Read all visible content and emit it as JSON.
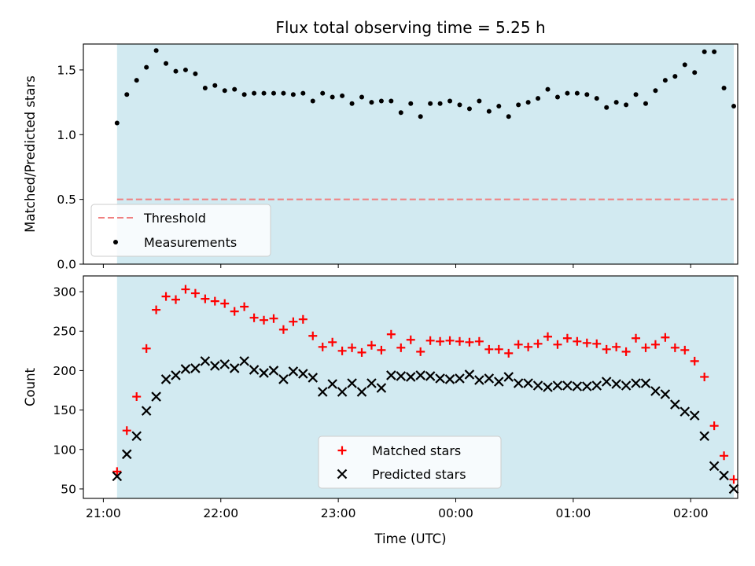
{
  "figure": {
    "title": "Flux total observing time = 5.25 h"
  },
  "colors": {
    "band": "#add8e6",
    "threshold": "#f08080",
    "matched": "#ff0000",
    "predicted": "#000000",
    "measurements": "#000000"
  },
  "chart_data": [
    {
      "type": "scatter",
      "name": "ratio-panel",
      "ylabel": "Matched/Predicted stars",
      "xlim": [
        -0.17,
        5.4
      ],
      "ylim": [
        0,
        1.7
      ],
      "yticks": [
        0.0,
        0.5,
        1.0,
        1.5
      ],
      "ytick_labels": [
        "0.0",
        "0.5",
        "1.0",
        "1.5"
      ],
      "xticks": [
        0,
        1,
        2,
        3,
        4,
        5
      ],
      "xtick_labels_visible": false,
      "shaded_span": [
        0.1167,
        5.3667
      ],
      "threshold": {
        "name": "Threshold",
        "value": 0.5,
        "style": "dashed"
      },
      "legend": {
        "position": "lower-left",
        "entries": [
          "Threshold",
          "Measurements"
        ]
      },
      "series": [
        {
          "name": "Measurements",
          "marker": "dot",
          "x": [
            0.1167,
            0.2,
            0.2833,
            0.3667,
            0.45,
            0.5333,
            0.6167,
            0.7,
            0.7833,
            0.8667,
            0.95,
            1.0333,
            1.1167,
            1.2,
            1.2833,
            1.3667,
            1.45,
            1.5333,
            1.6167,
            1.7,
            1.7833,
            1.8667,
            1.95,
            2.0333,
            2.1167,
            2.2,
            2.2833,
            2.3667,
            2.45,
            2.5333,
            2.6167,
            2.7,
            2.7833,
            2.8667,
            2.95,
            3.0333,
            3.1167,
            3.2,
            3.2833,
            3.3667,
            3.45,
            3.5333,
            3.6167,
            3.7,
            3.7833,
            3.8667,
            3.95,
            4.0333,
            4.1167,
            4.2,
            4.2833,
            4.3667,
            4.45,
            4.5333,
            4.6167,
            4.7,
            4.7833,
            4.8667,
            4.95,
            5.0333,
            5.1167,
            5.2,
            5.2833,
            5.3667
          ],
          "y": [
            1.09,
            1.31,
            1.42,
            1.52,
            1.65,
            1.55,
            1.49,
            1.5,
            1.47,
            1.36,
            1.38,
            1.34,
            1.35,
            1.31,
            1.32,
            1.32,
            1.32,
            1.32,
            1.31,
            1.32,
            1.26,
            1.32,
            1.29,
            1.3,
            1.24,
            1.29,
            1.25,
            1.26,
            1.26,
            1.17,
            1.24,
            1.14,
            1.24,
            1.24,
            1.26,
            1.23,
            1.2,
            1.26,
            1.18,
            1.22,
            1.14,
            1.23,
            1.25,
            1.28,
            1.35,
            1.29,
            1.32,
            1.32,
            1.31,
            1.28,
            1.21,
            1.25,
            1.23,
            1.31,
            1.24,
            1.34,
            1.42,
            1.45,
            1.54,
            1.48,
            1.64,
            1.64,
            1.36,
            1.22
          ]
        }
      ]
    },
    {
      "type": "scatter",
      "name": "count-panel",
      "xlabel": "Time (UTC)",
      "ylabel": "Count",
      "xlim": [
        -0.17,
        5.4
      ],
      "ylim": [
        38,
        320
      ],
      "yticks": [
        50,
        100,
        150,
        200,
        250,
        300
      ],
      "ytick_labels": [
        "50",
        "100",
        "150",
        "200",
        "250",
        "300"
      ],
      "xticks": [
        0,
        1,
        2,
        3,
        4,
        5
      ],
      "xtick_labels": [
        "21:00",
        "22:00",
        "23:00",
        "00:00",
        "01:00",
        "02:00"
      ],
      "shaded_span": [
        0.1167,
        5.3667
      ],
      "legend": {
        "position": "lower-center",
        "entries": [
          "Matched stars",
          "Predicted stars"
        ]
      },
      "series": [
        {
          "name": "Matched stars",
          "marker": "plus",
          "x": [
            0.1167,
            0.2,
            0.2833,
            0.3667,
            0.45,
            0.5333,
            0.6167,
            0.7,
            0.7833,
            0.8667,
            0.95,
            1.0333,
            1.1167,
            1.2,
            1.2833,
            1.3667,
            1.45,
            1.5333,
            1.6167,
            1.7,
            1.7833,
            1.8667,
            1.95,
            2.0333,
            2.1167,
            2.2,
            2.2833,
            2.3667,
            2.45,
            2.5333,
            2.6167,
            2.7,
            2.7833,
            2.8667,
            2.95,
            3.0333,
            3.1167,
            3.2,
            3.2833,
            3.3667,
            3.45,
            3.5333,
            3.6167,
            3.7,
            3.7833,
            3.8667,
            3.95,
            4.0333,
            4.1167,
            4.2,
            4.2833,
            4.3667,
            4.45,
            4.5333,
            4.6167,
            4.7,
            4.7833,
            4.8667,
            4.95,
            5.0333,
            5.1167,
            5.2,
            5.2833,
            5.3667
          ],
          "y": [
            72,
            124,
            167,
            228,
            277,
            294,
            290,
            303,
            298,
            291,
            288,
            285,
            275,
            281,
            267,
            264,
            266,
            252,
            262,
            265,
            244,
            230,
            236,
            225,
            229,
            223,
            232,
            226,
            246,
            229,
            239,
            224,
            238,
            237,
            238,
            237,
            236,
            237,
            227,
            227,
            222,
            233,
            230,
            234,
            243,
            233,
            241,
            237,
            235,
            234,
            227,
            230,
            224,
            241,
            229,
            233,
            242,
            229,
            226,
            212,
            192,
            130,
            92,
            62
          ]
        },
        {
          "name": "Predicted stars",
          "marker": "x",
          "x": [
            0.1167,
            0.2,
            0.2833,
            0.3667,
            0.45,
            0.5333,
            0.6167,
            0.7,
            0.7833,
            0.8667,
            0.95,
            1.0333,
            1.1167,
            1.2,
            1.2833,
            1.3667,
            1.45,
            1.5333,
            1.6167,
            1.7,
            1.7833,
            1.8667,
            1.95,
            2.0333,
            2.1167,
            2.2,
            2.2833,
            2.3667,
            2.45,
            2.5333,
            2.6167,
            2.7,
            2.7833,
            2.8667,
            2.95,
            3.0333,
            3.1167,
            3.2,
            3.2833,
            3.3667,
            3.45,
            3.5333,
            3.6167,
            3.7,
            3.7833,
            3.8667,
            3.95,
            4.0333,
            4.1167,
            4.2,
            4.2833,
            4.3667,
            4.45,
            4.5333,
            4.6167,
            4.7,
            4.7833,
            4.8667,
            4.95,
            5.0333,
            5.1167,
            5.2,
            5.2833,
            5.3667
          ],
          "y": [
            66,
            94,
            117,
            149,
            167,
            189,
            194,
            202,
            203,
            212,
            206,
            208,
            203,
            212,
            201,
            197,
            200,
            189,
            199,
            196,
            191,
            173,
            183,
            173,
            184,
            173,
            184,
            178,
            194,
            193,
            192,
            194,
            193,
            190,
            189,
            190,
            195,
            188,
            190,
            186,
            192,
            184,
            184,
            181,
            179,
            181,
            181,
            180,
            180,
            181,
            186,
            183,
            181,
            184,
            184,
            174,
            170,
            157,
            148,
            143,
            117,
            79,
            67,
            50
          ]
        }
      ]
    }
  ]
}
